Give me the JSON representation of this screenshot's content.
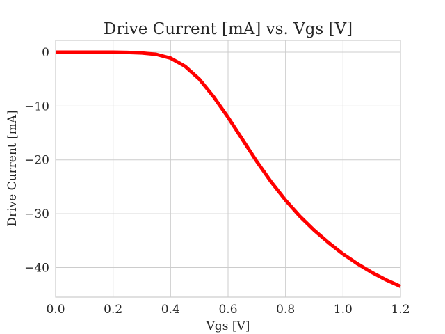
{
  "chart_data": {
    "type": "line",
    "title": "Drive Current [mA] vs. Vgs [V]",
    "xlabel": "Vgs [V]",
    "ylabel": "Drive Current [mA]",
    "xlim": [
      0.0,
      1.2
    ],
    "ylim": [
      -45.5,
      2.2
    ],
    "grid": true,
    "x_ticks": [
      {
        "value": 0.0,
        "label": "0.0"
      },
      {
        "value": 0.2,
        "label": "0.2"
      },
      {
        "value": 0.4,
        "label": "0.4"
      },
      {
        "value": 0.6,
        "label": "0.6"
      },
      {
        "value": 0.8,
        "label": "0.8"
      },
      {
        "value": 1.0,
        "label": "1.0"
      },
      {
        "value": 1.2,
        "label": "1.2"
      }
    ],
    "y_ticks": [
      {
        "value": 0,
        "label": "0"
      },
      {
        "value": -10,
        "label": "−10"
      },
      {
        "value": -20,
        "label": "−20"
      },
      {
        "value": -30,
        "label": "−30"
      },
      {
        "value": -40,
        "label": "−40"
      }
    ],
    "series": [
      {
        "color": "#ff0000",
        "x": [
          0.0,
          0.05,
          0.1,
          0.15,
          0.2,
          0.25,
          0.3,
          0.35,
          0.4,
          0.45,
          0.5,
          0.55,
          0.6,
          0.65,
          0.7,
          0.75,
          0.8,
          0.85,
          0.9,
          0.95,
          1.0,
          1.05,
          1.1,
          1.15,
          1.2
        ],
        "y": [
          0.0,
          0.0,
          0.0,
          0.0,
          0.0,
          -0.05,
          -0.15,
          -0.4,
          -1.1,
          -2.6,
          -5.0,
          -8.3,
          -12.1,
          -16.2,
          -20.3,
          -24.1,
          -27.5,
          -30.5,
          -33.1,
          -35.4,
          -37.5,
          -39.3,
          -40.9,
          -42.3,
          -43.5
        ]
      }
    ]
  }
}
